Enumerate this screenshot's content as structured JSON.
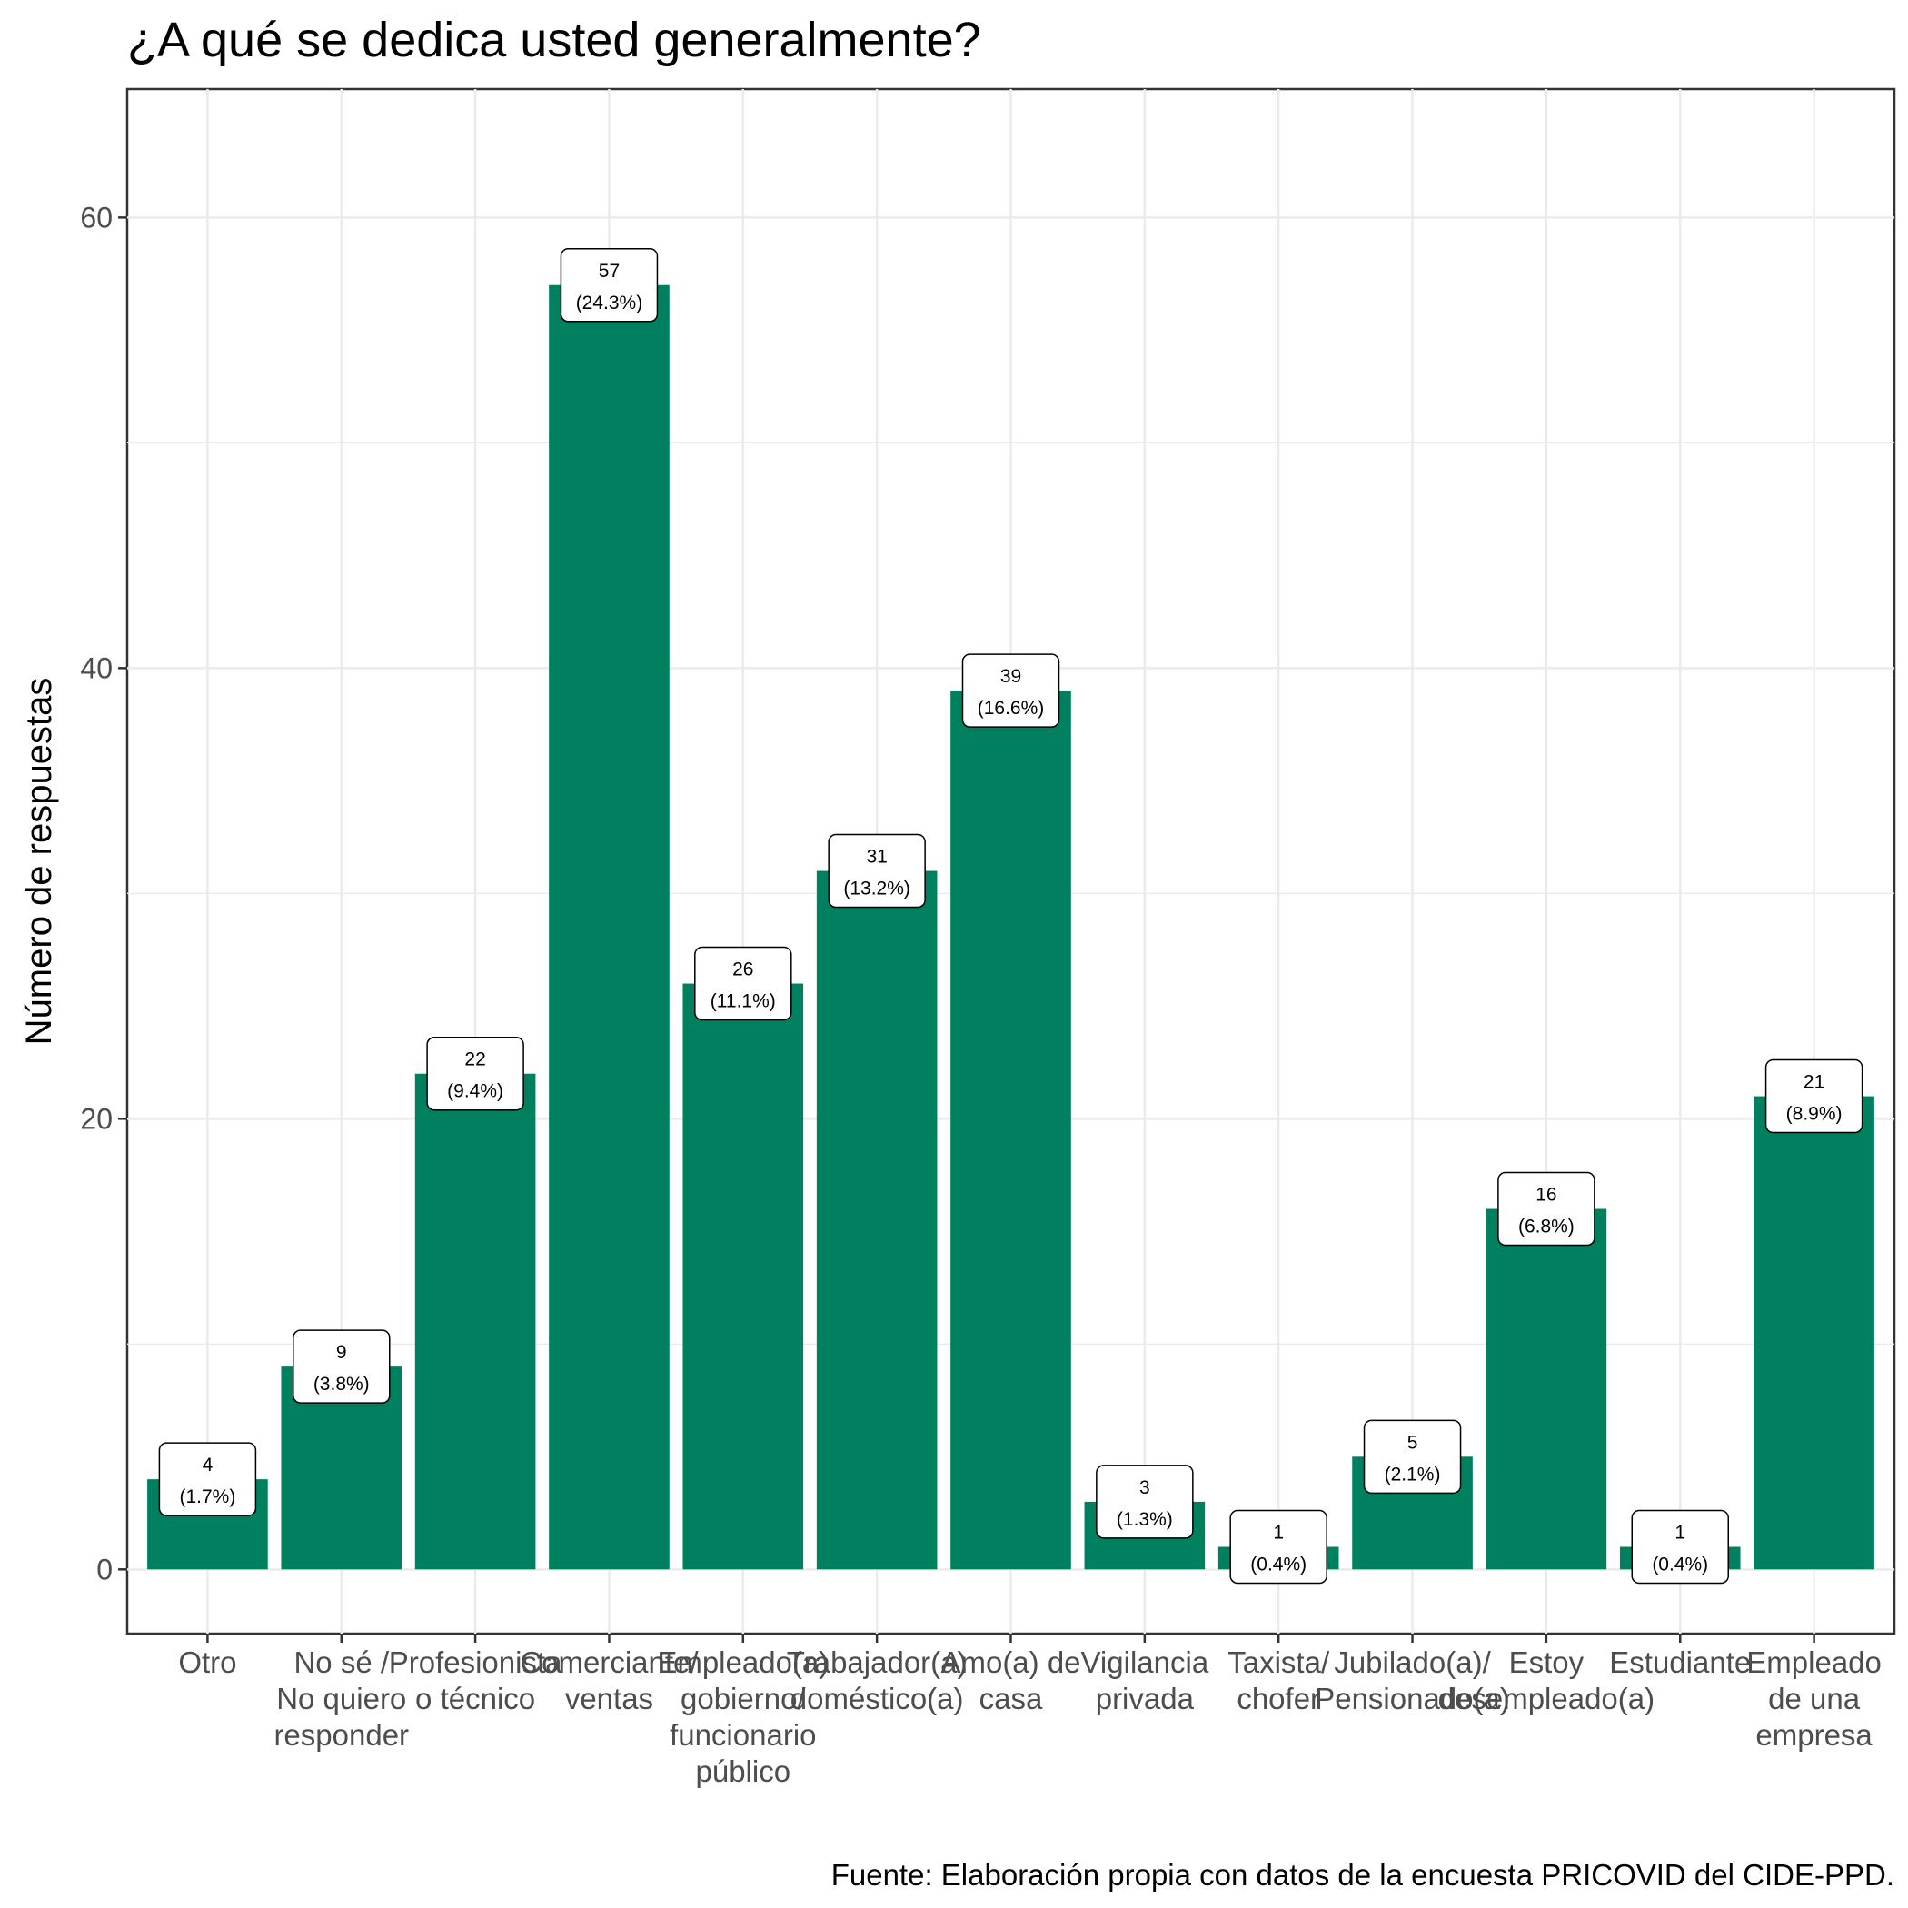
{
  "chart_data": {
    "type": "bar",
    "title": "¿A qué se dedica usted generalmente?",
    "xlabel": "",
    "ylabel": "Número de respuestas",
    "caption": "Fuente: Elaboración propia con datos de la encuesta PRICOVID del CIDE-PPD.",
    "categories": [
      [
        "Otro"
      ],
      [
        "No sé /",
        "No quiero",
        "responder"
      ],
      [
        "Profesionista",
        "o técnico"
      ],
      [
        "Comerciante/",
        "ventas"
      ],
      [
        "Empleado(a)",
        "gobierno/",
        "funcionario",
        "público"
      ],
      [
        "Trabajador(a)",
        "doméstico(a)"
      ],
      [
        "Amo(a) de",
        "casa"
      ],
      [
        "Vigilancia",
        "privada"
      ],
      [
        "Taxista/",
        "chofer"
      ],
      [
        "Jubilado(a)/",
        "Pensionado(a)"
      ],
      [
        "Estoy",
        "desempleado(a)"
      ],
      [
        "Estudiante"
      ],
      [
        "Empleado",
        "de una",
        "empresa"
      ]
    ],
    "values": [
      4,
      9,
      22,
      57,
      26,
      31,
      39,
      3,
      1,
      5,
      16,
      1,
      21
    ],
    "value_labels": [
      [
        "4",
        "(1.7%)"
      ],
      [
        "9",
        "(3.8%)"
      ],
      [
        "22",
        "(9.4%)"
      ],
      [
        "57",
        "(24.3%)"
      ],
      [
        "26",
        "(11.1%)"
      ],
      [
        "31",
        "(13.2%)"
      ],
      [
        "39",
        "(16.6%)"
      ],
      [
        "3",
        "(1.3%)"
      ],
      [
        "1",
        "(0.4%)"
      ],
      [
        "5",
        "(2.1%)"
      ],
      [
        "16",
        "(6.8%)"
      ],
      [
        "1",
        "(0.4%)"
      ],
      [
        "21",
        "(8.9%)"
      ]
    ],
    "yticks": [
      0,
      20,
      40,
      60
    ],
    "ylim": [
      -2.85,
      65.7
    ],
    "grid": true,
    "bar_color": "#00805f"
  }
}
